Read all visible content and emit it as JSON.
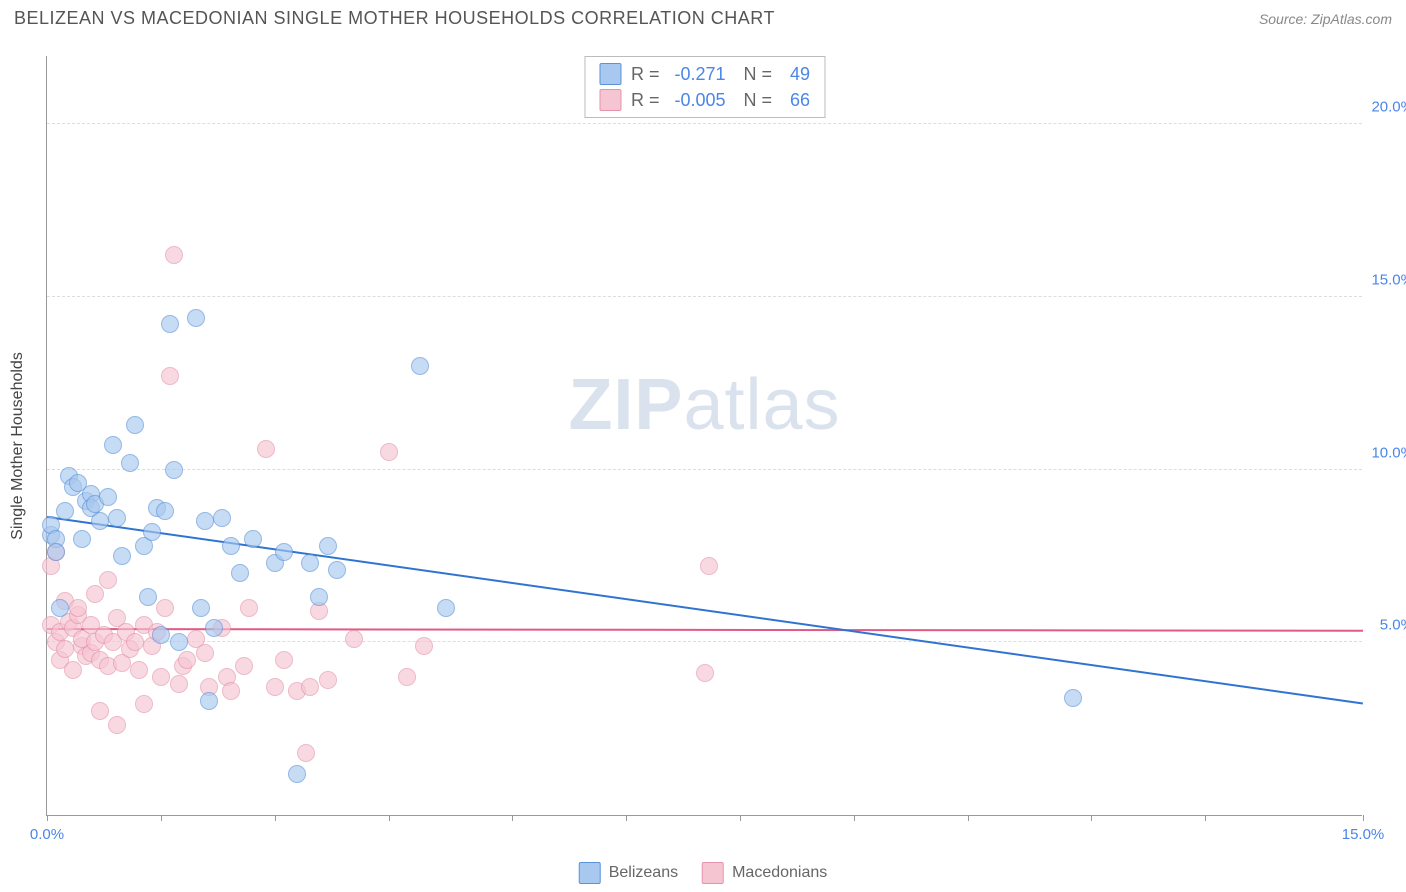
{
  "title": "BELIZEAN VS MACEDONIAN SINGLE MOTHER HOUSEHOLDS CORRELATION CHART",
  "source": "Source: ZipAtlas.com",
  "watermark": {
    "bold": "ZIP",
    "light": "atlas"
  },
  "y_axis_title": "Single Mother Households",
  "chart": {
    "type": "scatter",
    "xlim": [
      0,
      15
    ],
    "ylim": [
      0,
      22
    ],
    "y_ticks": [
      5,
      10,
      15,
      20
    ],
    "y_tick_labels": [
      "5.0%",
      "10.0%",
      "15.0%",
      "20.0%"
    ],
    "x_ticks": [
      0,
      1.3,
      2.6,
      3.9,
      5.3,
      6.6,
      7.9,
      9.2,
      10.5,
      11.9,
      13.2,
      15
    ],
    "x_tick_labels": {
      "0": "0.0%",
      "15": "15.0%"
    },
    "grid_color": "#dddddd",
    "background_color": "#ffffff",
    "axis_color": "#999999",
    "tick_label_color": "#4a86e8"
  },
  "series": {
    "belizeans": {
      "label": "Belizeans",
      "fill_color": "#a9c8ef",
      "border_color": "#5a93d8",
      "trend_color": "#2f74d0",
      "R": "-0.271",
      "N": "49",
      "trend": {
        "x1": 0,
        "y1": 8.6,
        "x2": 15,
        "y2": 3.2
      },
      "points": [
        [
          0.05,
          8.1
        ],
        [
          0.05,
          8.4
        ],
        [
          0.1,
          8.0
        ],
        [
          0.1,
          7.6
        ],
        [
          0.15,
          6.0
        ],
        [
          0.2,
          8.8
        ],
        [
          0.25,
          9.8
        ],
        [
          0.3,
          9.5
        ],
        [
          0.35,
          9.6
        ],
        [
          0.4,
          8.0
        ],
        [
          0.45,
          9.1
        ],
        [
          0.5,
          9.3
        ],
        [
          0.5,
          8.9
        ],
        [
          0.55,
          9.0
        ],
        [
          0.6,
          8.5
        ],
        [
          0.7,
          9.2
        ],
        [
          0.75,
          10.7
        ],
        [
          0.8,
          8.6
        ],
        [
          0.85,
          7.5
        ],
        [
          0.95,
          10.2
        ],
        [
          1.0,
          11.3
        ],
        [
          1.1,
          7.8
        ],
        [
          1.15,
          6.3
        ],
        [
          1.2,
          8.2
        ],
        [
          1.25,
          8.9
        ],
        [
          1.3,
          5.2
        ],
        [
          1.35,
          8.8
        ],
        [
          1.4,
          14.2
        ],
        [
          1.45,
          10.0
        ],
        [
          1.5,
          5.0
        ],
        [
          1.7,
          14.4
        ],
        [
          1.75,
          6.0
        ],
        [
          1.8,
          8.5
        ],
        [
          1.85,
          3.3
        ],
        [
          1.9,
          5.4
        ],
        [
          2.0,
          8.6
        ],
        [
          2.1,
          7.8
        ],
        [
          2.2,
          7.0
        ],
        [
          2.35,
          8.0
        ],
        [
          2.6,
          7.3
        ],
        [
          2.7,
          7.6
        ],
        [
          2.85,
          1.2
        ],
        [
          3.0,
          7.3
        ],
        [
          3.1,
          6.3
        ],
        [
          3.2,
          7.8
        ],
        [
          3.3,
          7.1
        ],
        [
          4.25,
          13.0
        ],
        [
          4.55,
          6.0
        ],
        [
          11.7,
          3.4
        ]
      ]
    },
    "macedonians": {
      "label": "Macedonians",
      "fill_color": "#f6c5d2",
      "border_color": "#e494ab",
      "trend_color": "#e05a85",
      "R": "-0.005",
      "N": "66",
      "trend": {
        "x1": 0,
        "y1": 5.35,
        "x2": 15,
        "y2": 5.3
      },
      "points": [
        [
          0.05,
          5.5
        ],
        [
          0.05,
          7.2
        ],
        [
          0.1,
          5.0
        ],
        [
          0.1,
          7.6
        ],
        [
          0.15,
          5.3
        ],
        [
          0.15,
          4.5
        ],
        [
          0.2,
          6.2
        ],
        [
          0.2,
          4.8
        ],
        [
          0.25,
          5.6
        ],
        [
          0.3,
          4.2
        ],
        [
          0.3,
          5.4
        ],
        [
          0.35,
          5.8
        ],
        [
          0.35,
          6.0
        ],
        [
          0.4,
          4.9
        ],
        [
          0.4,
          5.1
        ],
        [
          0.45,
          4.6
        ],
        [
          0.5,
          4.7
        ],
        [
          0.5,
          5.5
        ],
        [
          0.55,
          5.0
        ],
        [
          0.55,
          6.4
        ],
        [
          0.6,
          3.0
        ],
        [
          0.6,
          4.5
        ],
        [
          0.65,
          5.2
        ],
        [
          0.7,
          4.3
        ],
        [
          0.7,
          6.8
        ],
        [
          0.75,
          5.0
        ],
        [
          0.8,
          2.6
        ],
        [
          0.8,
          5.7
        ],
        [
          0.85,
          4.4
        ],
        [
          0.9,
          5.3
        ],
        [
          0.95,
          4.8
        ],
        [
          1.0,
          5.0
        ],
        [
          1.05,
          4.2
        ],
        [
          1.1,
          5.5
        ],
        [
          1.1,
          3.2
        ],
        [
          1.2,
          4.9
        ],
        [
          1.25,
          5.3
        ],
        [
          1.3,
          4.0
        ],
        [
          1.35,
          6.0
        ],
        [
          1.4,
          12.7
        ],
        [
          1.45,
          16.2
        ],
        [
          1.5,
          3.8
        ],
        [
          1.55,
          4.3
        ],
        [
          1.6,
          4.5
        ],
        [
          1.7,
          5.1
        ],
        [
          1.8,
          4.7
        ],
        [
          1.85,
          3.7
        ],
        [
          2.0,
          5.4
        ],
        [
          2.05,
          4.0
        ],
        [
          2.1,
          3.6
        ],
        [
          2.25,
          4.3
        ],
        [
          2.3,
          6.0
        ],
        [
          2.5,
          10.6
        ],
        [
          2.6,
          3.7
        ],
        [
          2.7,
          4.5
        ],
        [
          2.85,
          3.6
        ],
        [
          2.95,
          1.8
        ],
        [
          3.0,
          3.7
        ],
        [
          3.1,
          5.9
        ],
        [
          3.2,
          3.9
        ],
        [
          3.5,
          5.1
        ],
        [
          3.9,
          10.5
        ],
        [
          4.1,
          4.0
        ],
        [
          4.3,
          4.9
        ],
        [
          7.5,
          4.1
        ],
        [
          7.55,
          7.2
        ]
      ]
    }
  },
  "stats_box": {
    "R_label": "R =",
    "N_label": "N ="
  },
  "legend_order": [
    "belizeans",
    "macedonians"
  ]
}
